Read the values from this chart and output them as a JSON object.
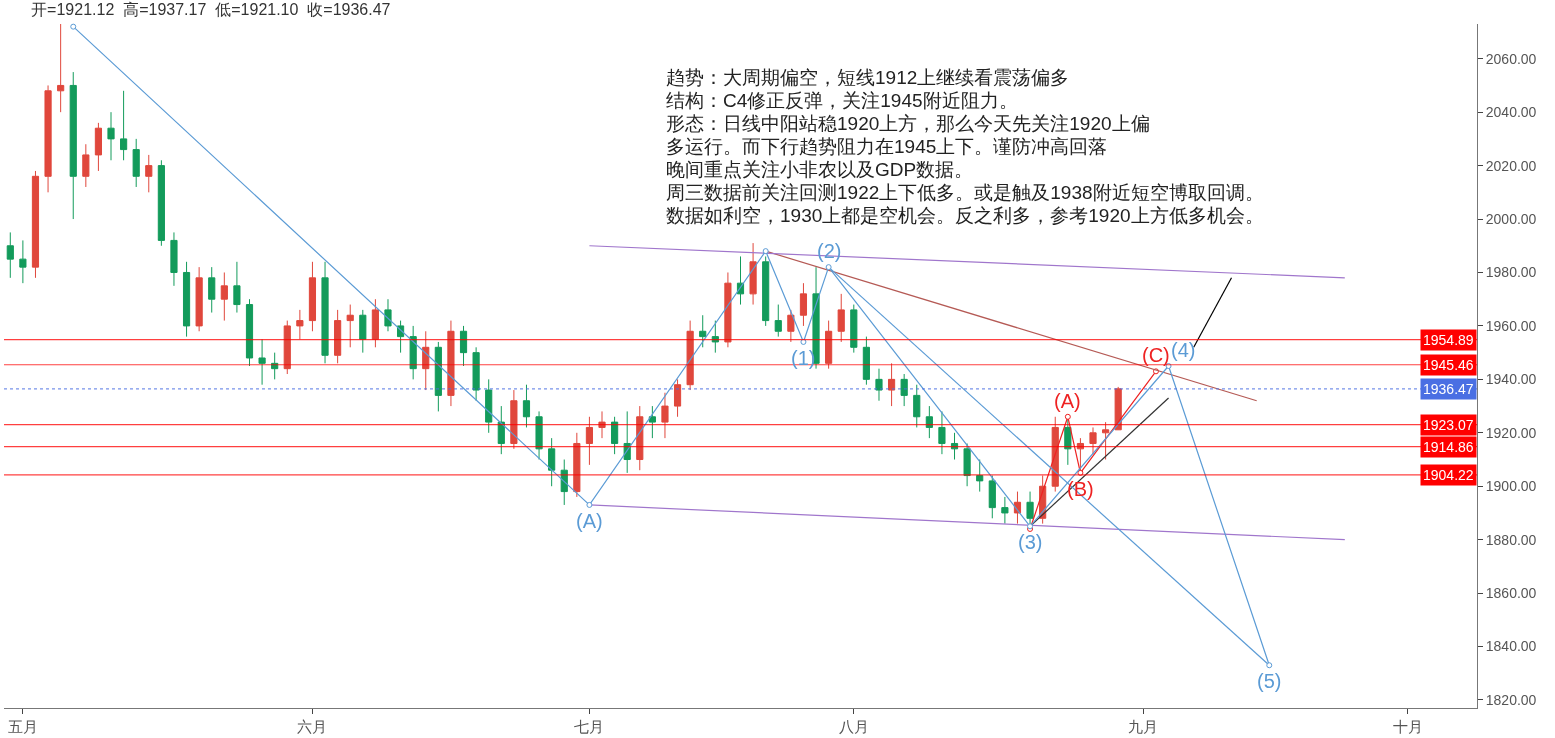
{
  "chart_data": {
    "type": "candlestick",
    "title": "开=1921.12  高=1937.17  低=1921.10  收=1936.47",
    "categories": [
      null,
      "五月",
      null,
      null,
      null,
      null,
      null,
      null,
      null,
      null,
      null,
      null,
      null,
      null,
      null,
      null,
      null,
      null,
      null,
      null,
      null,
      null,
      null,
      null,
      "六月",
      null,
      null,
      null,
      null,
      null,
      null,
      null,
      null,
      null,
      null,
      null,
      null,
      null,
      null,
      null,
      null,
      null,
      null,
      null,
      null,
      null,
      "七月",
      null,
      null,
      null,
      null,
      null,
      null,
      null,
      null,
      null,
      null,
      null,
      null,
      null,
      null,
      null,
      null,
      null,
      null,
      null,
      null,
      "八月",
      null,
      null,
      null,
      null,
      null,
      null,
      null,
      null,
      null,
      null,
      null,
      null,
      null,
      null,
      null,
      null,
      null,
      null,
      null,
      null,
      null,
      null,
      "九月",
      null,
      null,
      null,
      null,
      null,
      null,
      null,
      null,
      null,
      null,
      null,
      null,
      null,
      null,
      null,
      null,
      null,
      null,
      null,
      null,
      "十月",
      null,
      null,
      null,
      null,
      null
    ],
    "ohlc": [
      [
        1990,
        1995,
        1978,
        1985
      ],
      [
        1985,
        1992,
        1976,
        1982
      ],
      [
        1982,
        2018,
        1978,
        2016
      ],
      [
        2016,
        2050,
        2010,
        2048
      ],
      [
        2048,
        2073,
        2040,
        2050
      ],
      [
        2050,
        2055,
        2000,
        2016
      ],
      [
        2016,
        2028,
        2012,
        2024
      ],
      [
        2024,
        2036,
        2018,
        2034
      ],
      [
        2034,
        2040,
        2022,
        2030
      ],
      [
        2030,
        2048,
        2022,
        2026
      ],
      [
        2026,
        2030,
        2012,
        2016
      ],
      [
        2016,
        2024,
        2010,
        2020
      ],
      [
        2020,
        2022,
        1990,
        1992
      ],
      [
        1992,
        1995,
        1975,
        1980
      ],
      [
        1980,
        1984,
        1956,
        1960
      ],
      [
        1960,
        1982,
        1958,
        1978
      ],
      [
        1978,
        1982,
        1965,
        1970
      ],
      [
        1970,
        1980,
        1962,
        1975
      ],
      [
        1975,
        1984,
        1965,
        1968
      ],
      [
        1968,
        1970,
        1945,
        1948
      ],
      [
        1948,
        1955,
        1938,
        1946
      ],
      [
        1946,
        1950,
        1940,
        1944
      ],
      [
        1944,
        1962,
        1942,
        1960
      ],
      [
        1960,
        1966,
        1955,
        1962
      ],
      [
        1962,
        1984,
        1958,
        1978
      ],
      [
        1978,
        1984,
        1946,
        1949
      ],
      [
        1949,
        1966,
        1946,
        1962
      ],
      [
        1962,
        1968,
        1952,
        1964
      ],
      [
        1964,
        1966,
        1950,
        1955
      ],
      [
        1955,
        1970,
        1952,
        1966
      ],
      [
        1966,
        1970,
        1958,
        1960
      ],
      [
        1960,
        1962,
        1950,
        1956
      ],
      [
        1956,
        1960,
        1940,
        1944
      ],
      [
        1944,
        1958,
        1936,
        1952
      ],
      [
        1952,
        1954,
        1928,
        1934
      ],
      [
        1934,
        1962,
        1930,
        1958
      ],
      [
        1958,
        1960,
        1945,
        1950
      ],
      [
        1950,
        1952,
        1932,
        1936
      ],
      [
        1936,
        1940,
        1920,
        1924
      ],
      [
        1924,
        1930,
        1912,
        1916
      ],
      [
        1916,
        1936,
        1914,
        1932
      ],
      [
        1932,
        1938,
        1922,
        1926
      ],
      [
        1926,
        1928,
        1910,
        1914
      ],
      [
        1914,
        1918,
        1900,
        1906
      ],
      [
        1906,
        1910,
        1893,
        1898
      ],
      [
        1898,
        1920,
        1896,
        1916
      ],
      [
        1916,
        1926,
        1908,
        1922
      ],
      [
        1922,
        1928,
        1918,
        1924
      ],
      [
        1924,
        1926,
        1912,
        1916
      ],
      [
        1916,
        1928,
        1905,
        1910
      ],
      [
        1910,
        1930,
        1906,
        1926
      ],
      [
        1926,
        1930,
        1918,
        1924
      ],
      [
        1924,
        1935,
        1918,
        1930
      ],
      [
        1930,
        1940,
        1926,
        1938
      ],
      [
        1938,
        1962,
        1936,
        1958
      ],
      [
        1958,
        1964,
        1952,
        1956
      ],
      [
        1956,
        1962,
        1950,
        1954
      ],
      [
        1954,
        1980,
        1952,
        1976
      ],
      [
        1976,
        1986,
        1968,
        1972
      ],
      [
        1972,
        1991,
        1968,
        1984
      ],
      [
        1984,
        1986,
        1960,
        1962
      ],
      [
        1962,
        1968,
        1956,
        1958
      ],
      [
        1958,
        1966,
        1954,
        1964
      ],
      [
        1964,
        1976,
        1960,
        1972
      ],
      [
        1972,
        1982,
        1944,
        1946
      ],
      [
        1946,
        1962,
        1944,
        1958
      ],
      [
        1958,
        1972,
        1954,
        1966
      ],
      [
        1966,
        1968,
        1950,
        1952
      ],
      [
        1952,
        1956,
        1938,
        1940
      ],
      [
        1940,
        1944,
        1932,
        1936
      ],
      [
        1936,
        1946,
        1930,
        1940
      ],
      [
        1940,
        1942,
        1930,
        1934
      ],
      [
        1934,
        1938,
        1922,
        1926
      ],
      [
        1926,
        1930,
        1918,
        1922
      ],
      [
        1922,
        1928,
        1912,
        1916
      ],
      [
        1916,
        1920,
        1910,
        1914
      ],
      [
        1914,
        1916,
        1900,
        1904
      ],
      [
        1904,
        1910,
        1898,
        1902
      ],
      [
        1902,
        1904,
        1888,
        1892
      ],
      [
        1892,
        1896,
        1886,
        1890
      ],
      [
        1890,
        1898,
        1886,
        1894
      ],
      [
        1894,
        1898,
        1885,
        1888
      ],
      [
        1888,
        1904,
        1886,
        1900
      ],
      [
        1900,
        1926,
        1898,
        1922
      ],
      [
        1922,
        1925,
        1908,
        1914
      ],
      [
        1914,
        1918,
        1905,
        1916
      ],
      [
        1916,
        1922,
        1912,
        1920
      ],
      [
        1920,
        1924,
        1910,
        1921.12
      ],
      [
        1921.12,
        1937.17,
        1921.1,
        1936.47
      ],
      null,
      null,
      null,
      null,
      null,
      null,
      null,
      null,
      null,
      null,
      null,
      null,
      null,
      null,
      null,
      null,
      null,
      null,
      null,
      null,
      null,
      null,
      null,
      null,
      null,
      null,
      null,
      null
    ],
    "colors": [
      "#139b5b",
      "#139b5b",
      "#e0473c",
      "#e0473c",
      "#e0473c",
      "#139b5b",
      "#e0473c",
      "#e0473c",
      "#139b5b",
      "#139b5b",
      "#139b5b",
      "#e0473c",
      "#139b5b",
      "#139b5b",
      "#139b5b",
      "#e0473c",
      "#139b5b",
      "#e0473c",
      "#139b5b",
      "#139b5b",
      "#139b5b",
      "#139b5b",
      "#e0473c",
      "#e0473c",
      "#e0473c",
      "#139b5b",
      "#e0473c",
      "#e0473c",
      "#139b5b",
      "#e0473c",
      "#139b5b",
      "#139b5b",
      "#139b5b",
      "#e0473c",
      "#139b5b",
      "#e0473c",
      "#139b5b",
      "#139b5b",
      "#139b5b",
      "#139b5b",
      "#e0473c",
      "#139b5b",
      "#139b5b",
      "#139b5b",
      "#139b5b",
      "#e0473c",
      "#e0473c",
      "#e0473c",
      "#139b5b",
      "#139b5b",
      "#e0473c",
      "#139b5b",
      "#e0473c",
      "#e0473c",
      "#e0473c",
      "#139b5b",
      "#139b5b",
      "#e0473c",
      "#139b5b",
      "#e0473c",
      "#139b5b",
      "#139b5b",
      "#e0473c",
      "#e0473c",
      "#139b5b",
      "#e0473c",
      "#e0473c",
      "#139b5b",
      "#139b5b",
      "#139b5b",
      "#e0473c",
      "#139b5b",
      "#139b5b",
      "#139b5b",
      "#139b5b",
      "#139b5b",
      "#139b5b",
      "#139b5b",
      "#139b5b",
      "#139b5b",
      "#e0473c",
      "#139b5b",
      "#e0473c",
      "#e0473c",
      "#139b5b",
      "#e0473c",
      "#e0473c",
      "#e0473c",
      "#e0473c",
      null,
      null,
      null,
      null,
      null,
      null,
      null,
      null,
      null,
      null,
      null,
      null,
      null,
      null,
      null,
      null,
      null,
      null,
      null,
      null,
      null,
      null,
      null,
      null,
      null,
      null,
      null,
      null
    ],
    "series": [
      {
        "type": "line",
        "color": "#5b9bd5",
        "marker": "circle",
        "values": [
          null,
          null,
          null,
          null,
          null,
          2072,
          null,
          null,
          null,
          null,
          null,
          null,
          null,
          null,
          null,
          null,
          null,
          null,
          null,
          null,
          null,
          null,
          null,
          null,
          null,
          null,
          null,
          null,
          null,
          null,
          null,
          null,
          null,
          null,
          null,
          null,
          null,
          null,
          null,
          null,
          null,
          null,
          null,
          null,
          null,
          null,
          1893,
          null,
          null,
          null,
          null,
          null,
          null,
          null,
          null,
          null,
          null,
          null,
          null,
          null,
          1988,
          null,
          null,
          1954,
          null,
          1982,
          null,
          null,
          null,
          null,
          null,
          null,
          null,
          null,
          null,
          null,
          null,
          null,
          null,
          null,
          null,
          1885,
          null,
          null,
          null,
          null,
          null,
          null,
          null,
          null,
          null,
          null,
          1945,
          null,
          null,
          null,
          null,
          null,
          null,
          null,
          1833,
          null,
          null,
          null,
          null,
          null,
          null,
          null,
          null,
          null,
          null,
          null,
          null,
          null,
          null,
          null,
          null
        ]
      },
      {
        "type": "line",
        "color": "#5b9bd5",
        "marker": "none",
        "values": [
          null,
          null,
          null,
          null,
          null,
          null,
          null,
          null,
          null,
          null,
          null,
          null,
          null,
          null,
          null,
          null,
          null,
          null,
          null,
          null,
          null,
          null,
          null,
          null,
          null,
          null,
          null,
          null,
          null,
          null,
          null,
          null,
          null,
          null,
          null,
          null,
          null,
          null,
          null,
          null,
          null,
          null,
          null,
          null,
          null,
          null,
          null,
          null,
          null,
          null,
          null,
          null,
          null,
          null,
          null,
          null,
          null,
          null,
          null,
          null,
          null,
          null,
          null,
          null,
          null,
          1982,
          null,
          null,
          null,
          null,
          null,
          null,
          null,
          null,
          null,
          null,
          null,
          null,
          null,
          null,
          null,
          null,
          null,
          null,
          null,
          null,
          null,
          null,
          null,
          null,
          null,
          null,
          null,
          null,
          null,
          null,
          null,
          null,
          null,
          null,
          1833,
          null,
          null,
          null,
          null,
          null,
          null,
          null,
          null,
          null,
          null,
          null,
          null,
          null,
          null,
          null,
          null
        ]
      },
      {
        "type": "line",
        "color": "#a076cc",
        "marker": "none",
        "values": [
          null,
          null,
          null,
          null,
          null,
          null,
          null,
          null,
          null,
          null,
          null,
          null,
          null,
          null,
          null,
          null,
          null,
          null,
          null,
          null,
          null,
          null,
          null,
          null,
          null,
          null,
          null,
          null,
          null,
          null,
          null,
          null,
          null,
          null,
          null,
          null,
          null,
          null,
          null,
          null,
          null,
          null,
          null,
          null,
          null,
          null,
          1990,
          null,
          null,
          null,
          null,
          null,
          null,
          null,
          null,
          null,
          null,
          null,
          null,
          null,
          null,
          null,
          null,
          null,
          null,
          null,
          null,
          null,
          null,
          null,
          null,
          null,
          null,
          null,
          null,
          null,
          null,
          null,
          null,
          null,
          null,
          null,
          null,
          null,
          null,
          null,
          null,
          null,
          null,
          null,
          null,
          null,
          null,
          null,
          null,
          null,
          null,
          null,
          null,
          null,
          null,
          null,
          null,
          null,
          null,
          null,
          1978,
          null,
          null,
          null,
          null,
          null,
          null,
          null,
          null,
          null,
          null
        ]
      },
      {
        "type": "line",
        "color": "#a076cc",
        "marker": "none",
        "values": [
          null,
          null,
          null,
          null,
          null,
          null,
          null,
          null,
          null,
          null,
          null,
          null,
          null,
          null,
          null,
          null,
          null,
          null,
          null,
          null,
          null,
          null,
          null,
          null,
          null,
          null,
          null,
          null,
          null,
          null,
          null,
          null,
          null,
          null,
          null,
          null,
          null,
          null,
          null,
          null,
          null,
          null,
          null,
          null,
          null,
          null,
          1893,
          null,
          null,
          null,
          null,
          null,
          null,
          null,
          null,
          null,
          null,
          null,
          null,
          null,
          null,
          null,
          null,
          null,
          null,
          null,
          null,
          null,
          null,
          null,
          null,
          null,
          null,
          null,
          null,
          null,
          null,
          null,
          null,
          null,
          null,
          null,
          null,
          null,
          null,
          null,
          null,
          null,
          null,
          null,
          null,
          null,
          null,
          null,
          null,
          null,
          null,
          null,
          null,
          null,
          null,
          null,
          null,
          null,
          null,
          null,
          1880,
          null,
          null,
          null,
          null,
          null,
          null,
          null,
          null,
          null,
          null
        ]
      },
      {
        "type": "line",
        "color": "#b55a55",
        "marker": "none",
        "values": [
          null,
          null,
          null,
          null,
          null,
          null,
          null,
          null,
          null,
          null,
          null,
          null,
          null,
          null,
          null,
          null,
          null,
          null,
          null,
          null,
          null,
          null,
          null,
          null,
          null,
          null,
          null,
          null,
          null,
          null,
          null,
          null,
          null,
          null,
          null,
          null,
          null,
          null,
          null,
          null,
          null,
          null,
          null,
          null,
          null,
          null,
          null,
          null,
          null,
          null,
          null,
          null,
          null,
          null,
          null,
          null,
          null,
          null,
          null,
          null,
          1988,
          null,
          null,
          null,
          null,
          null,
          null,
          null,
          null,
          null,
          null,
          null,
          null,
          null,
          null,
          null,
          null,
          null,
          null,
          null,
          null,
          null,
          null,
          null,
          null,
          null,
          null,
          null,
          null,
          null,
          null,
          null,
          null,
          null,
          null,
          null,
          null,
          null,
          null,
          1932,
          null,
          null,
          null,
          null,
          null,
          null,
          null,
          null,
          null,
          null,
          null,
          null,
          null,
          null,
          null,
          null,
          null
        ]
      },
      {
        "type": "line",
        "color": "#333333",
        "marker": "none",
        "values": [
          null,
          null,
          null,
          null,
          null,
          null,
          null,
          null,
          null,
          null,
          null,
          null,
          null,
          null,
          null,
          null,
          null,
          null,
          null,
          null,
          null,
          null,
          null,
          null,
          null,
          null,
          null,
          null,
          null,
          null,
          null,
          null,
          null,
          null,
          null,
          null,
          null,
          null,
          null,
          null,
          null,
          null,
          null,
          null,
          null,
          null,
          null,
          null,
          null,
          null,
          null,
          null,
          null,
          null,
          null,
          null,
          null,
          null,
          null,
          null,
          null,
          null,
          null,
          null,
          null,
          null,
          null,
          null,
          null,
          null,
          null,
          null,
          null,
          null,
          null,
          null,
          null,
          null,
          null,
          null,
          null,
          1885,
          null,
          null,
          null,
          null,
          null,
          null,
          null,
          null,
          null,
          null,
          1933,
          null,
          null,
          null,
          null,
          null,
          null,
          null,
          null,
          null,
          null,
          null,
          null,
          null,
          null,
          null,
          null,
          null,
          null,
          null,
          null,
          null,
          null,
          null,
          null
        ]
      },
      {
        "type": "line",
        "color": "#ee2222",
        "marker": "circle",
        "values": [
          null,
          null,
          null,
          null,
          null,
          null,
          null,
          null,
          null,
          null,
          null,
          null,
          null,
          null,
          null,
          null,
          null,
          null,
          null,
          null,
          null,
          null,
          null,
          null,
          null,
          null,
          null,
          null,
          null,
          null,
          null,
          null,
          null,
          null,
          null,
          null,
          null,
          null,
          null,
          null,
          null,
          null,
          null,
          null,
          null,
          null,
          null,
          null,
          null,
          null,
          null,
          null,
          null,
          null,
          null,
          null,
          null,
          null,
          null,
          null,
          null,
          null,
          null,
          null,
          null,
          null,
          null,
          null,
          null,
          null,
          null,
          null,
          null,
          null,
          null,
          null,
          null,
          null,
          null,
          null,
          null,
          1884,
          null,
          null,
          1926,
          1905,
          null,
          null,
          null,
          null,
          null,
          1943,
          null,
          null,
          null,
          null,
          null,
          null,
          null,
          null,
          null,
          null,
          null,
          null,
          null,
          null,
          null,
          null,
          null,
          null,
          null,
          null,
          null,
          null,
          null,
          null,
          null
        ]
      },
      {
        "type": "line",
        "color": "#000000",
        "marker": "none",
        "values": [
          null,
          null,
          null,
          null,
          null,
          null,
          null,
          null,
          null,
          null,
          null,
          null,
          null,
          null,
          null,
          null,
          null,
          null,
          null,
          null,
          null,
          null,
          null,
          null,
          null,
          null,
          null,
          null,
          null,
          null,
          null,
          null,
          null,
          null,
          null,
          null,
          null,
          null,
          null,
          null,
          null,
          null,
          null,
          null,
          null,
          null,
          null,
          null,
          null,
          null,
          null,
          null,
          null,
          null,
          null,
          null,
          null,
          null,
          null,
          null,
          null,
          null,
          null,
          null,
          null,
          null,
          null,
          null,
          null,
          null,
          null,
          null,
          null,
          null,
          null,
          null,
          null,
          null,
          null,
          null,
          null,
          null,
          null,
          null,
          null,
          null,
          null,
          null,
          null,
          null,
          null,
          null,
          null,
          null,
          1952,
          null,
          null,
          1978,
          null,
          null,
          null,
          null,
          null,
          null,
          null,
          null,
          null,
          null,
          null,
          null,
          null,
          null,
          null,
          null,
          null,
          null,
          null
        ]
      }
    ],
    "ref_lines": [
      {
        "axis": "y",
        "value": 1954.89,
        "label": "1954.89",
        "color": "#ff0000",
        "line_style": "solid"
      },
      {
        "axis": "y",
        "value": 1945.46,
        "label": "1945.46",
        "color": "#ff0000",
        "line_style": "solid"
      },
      {
        "axis": "y",
        "value": 1936.47,
        "label": "1936.47",
        "color": "#4a6fe3",
        "line_style": "dotted"
      },
      {
        "axis": "y",
        "value": 1923.07,
        "label": "1923.07",
        "color": "#ff0000",
        "line_style": "solid"
      },
      {
        "axis": "y",
        "value": 1914.86,
        "label": "1914.86",
        "color": "#ff0000",
        "line_style": "solid"
      },
      {
        "axis": "y",
        "value": 1904.22,
        "label": "1904.22",
        "color": "#ff0000",
        "line_style": "solid"
      }
    ],
    "annotations": [
      "趋势：大周期偏空，短线1912上继续看震荡偏多",
      "结构：C4修正反弹，关注1945附近阻力。",
      "形态：日线中阳站稳1920上方，那么今天先关注1920上偏",
      "多运行。而下行趋势阻力在1945上下。谨防冲高回落",
      "晚间重点关注小非农以及GDP数据。",
      "周三数据前关注回测1922上下低多。或是触及1938附近短空博取回调。",
      "数据如利空，1930上都是空机会。反之利多，参考1920上方低多机会。",
      {
        "text": "(A)",
        "y": 1893
      },
      {
        "text": "(1)",
        "y": 1954
      },
      {
        "text": "(2)",
        "y": 1982
      },
      {
        "text": "(3)",
        "y": 1885
      },
      {
        "text": "(4)",
        "y": 1945
      },
      {
        "text": "(5)",
        "y": 1833
      },
      {
        "text": "(A)",
        "y": 1926
      },
      {
        "text": "(B)",
        "y": 1905
      },
      {
        "text": "(C)",
        "y": 1943
      }
    ],
    "ylim": [
      1817,
      2073
    ],
    "yticks": [
      {
        "value": 1820,
        "label": "1820.00"
      },
      {
        "value": 1840,
        "label": "1840.00"
      },
      {
        "value": 1860,
        "label": "1860.00"
      },
      {
        "value": 1880,
        "label": "1880.00"
      },
      {
        "value": 1900,
        "label": "1900.00"
      },
      {
        "value": 1920,
        "label": "1920.00"
      },
      {
        "value": 1940,
        "label": "1940.00"
      },
      {
        "value": 1960,
        "label": "1960.00"
      },
      {
        "value": 1980,
        "label": "1980.00"
      },
      {
        "value": 2000,
        "label": "2000.00"
      },
      {
        "value": 2020,
        "label": "2020.00"
      },
      {
        "value": 2040,
        "label": "2040.00"
      },
      {
        "value": 2060,
        "label": "2060.00"
      }
    ]
  }
}
